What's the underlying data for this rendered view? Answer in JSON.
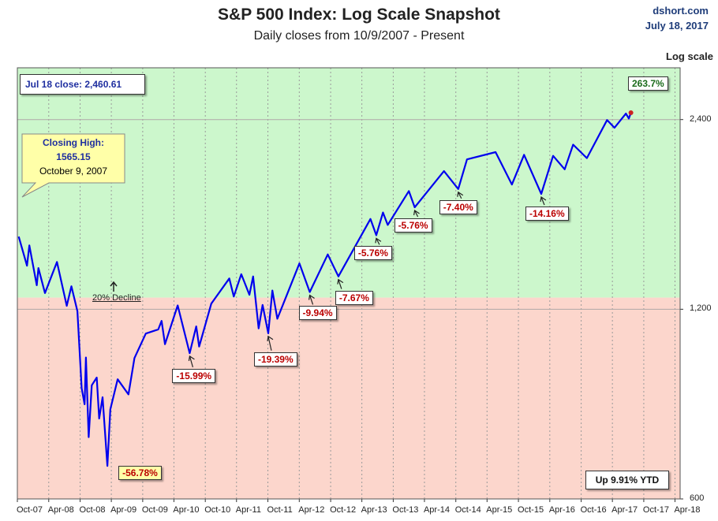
{
  "header": {
    "title": "S&P 500 Index: Log Scale Snapshot",
    "subtitle": "Daily closes from 10/9/2007 - Present",
    "source": "dshort.com",
    "date": "July 18, 2017",
    "scale_label": "Log scale"
  },
  "annotations": {
    "close_label": "Jul 18 close: 2,460.61",
    "gain_label": "263.7%",
    "ytd_label": "Up 9.91% YTD",
    "closing_high_title": "Closing High:",
    "closing_high_value": "1565.15",
    "closing_high_date": "October 9, 2007",
    "decline_label": "20% Decline"
  },
  "colors": {
    "line": "#0000ee",
    "upper_zone": "#ccf7cc",
    "lower_zone": "#fcd6cc",
    "drawdown_text": "#bb0000",
    "gain_text": "#1b6b1b"
  },
  "chart_data": {
    "type": "line",
    "title": "S&P 500 Index: Log Scale Snapshot",
    "subtitle": "Daily closes from 10/9/2007 - Present",
    "y_scale": "log",
    "ylim": [
      600,
      2900
    ],
    "xlim": [
      "2007-10-01",
      "2018-05-01"
    ],
    "y_ticks": [
      {
        "value": 600,
        "label": "600"
      },
      {
        "value": 1200,
        "label": "1,200"
      },
      {
        "value": 2400,
        "label": "2,400"
      }
    ],
    "x_ticks": [
      {
        "date": "2007-10-01",
        "label": "Oct-07"
      },
      {
        "date": "2008-04-01",
        "label": "Apr-08"
      },
      {
        "date": "2008-10-01",
        "label": "Oct-08"
      },
      {
        "date": "2009-04-01",
        "label": "Apr-09"
      },
      {
        "date": "2009-10-01",
        "label": "Oct-09"
      },
      {
        "date": "2010-04-01",
        "label": "Apr-10"
      },
      {
        "date": "2010-10-01",
        "label": "Oct-10"
      },
      {
        "date": "2011-04-01",
        "label": "Apr-11"
      },
      {
        "date": "2011-10-01",
        "label": "Oct-11"
      },
      {
        "date": "2012-04-01",
        "label": "Apr-12"
      },
      {
        "date": "2012-10-01",
        "label": "Oct-12"
      },
      {
        "date": "2013-04-01",
        "label": "Apr-13"
      },
      {
        "date": "2013-10-01",
        "label": "Oct-13"
      },
      {
        "date": "2014-04-01",
        "label": "Apr-14"
      },
      {
        "date": "2014-10-01",
        "label": "Oct-14"
      },
      {
        "date": "2015-04-01",
        "label": "Apr-15"
      },
      {
        "date": "2015-10-01",
        "label": "Oct-15"
      },
      {
        "date": "2016-04-01",
        "label": "Apr-16"
      },
      {
        "date": "2016-10-01",
        "label": "Oct-16"
      },
      {
        "date": "2017-04-01",
        "label": "Apr-17"
      },
      {
        "date": "2017-10-01",
        "label": "Oct-17"
      },
      {
        "date": "2018-04-01",
        "label": "Apr-18"
      }
    ],
    "zones": [
      {
        "from": 1252.12,
        "to": 2900,
        "color": "#ccf7cc"
      },
      {
        "from": 600,
        "to": 1252.12,
        "color": "#fcd6cc"
      }
    ],
    "series": [
      {
        "points": [
          [
            "2007-10-09",
            1565
          ],
          [
            "2007-11-26",
            1407
          ],
          [
            "2007-12-10",
            1515
          ],
          [
            "2008-01-22",
            1310
          ],
          [
            "2008-02-01",
            1395
          ],
          [
            "2008-03-10",
            1273
          ],
          [
            "2008-05-19",
            1426
          ],
          [
            "2008-07-15",
            1215
          ],
          [
            "2008-08-11",
            1305
          ],
          [
            "2008-09-15",
            1192
          ],
          [
            "2008-10-10",
            899
          ],
          [
            "2008-10-27",
            848
          ],
          [
            "2008-11-04",
            1006
          ],
          [
            "2008-11-20",
            752
          ],
          [
            "2008-12-08",
            909
          ],
          [
            "2009-01-06",
            935
          ],
          [
            "2009-01-20",
            805
          ],
          [
            "2009-02-09",
            870
          ],
          [
            "2009-03-09",
            677
          ],
          [
            "2009-03-26",
            832
          ],
          [
            "2009-05-08",
            929
          ],
          [
            "2009-07-10",
            879
          ],
          [
            "2009-08-14",
            1004
          ],
          [
            "2009-10-19",
            1098
          ],
          [
            "2009-12-31",
            1115
          ],
          [
            "2010-01-19",
            1150
          ],
          [
            "2010-02-08",
            1056
          ],
          [
            "2010-04-23",
            1217
          ],
          [
            "2010-07-02",
            1022
          ],
          [
            "2010-08-09",
            1127
          ],
          [
            "2010-08-26",
            1047
          ],
          [
            "2010-11-05",
            1225
          ],
          [
            "2011-02-18",
            1343
          ],
          [
            "2011-03-16",
            1257
          ],
          [
            "2011-04-29",
            1364
          ],
          [
            "2011-06-15",
            1265
          ],
          [
            "2011-07-07",
            1353
          ],
          [
            "2011-08-08",
            1119
          ],
          [
            "2011-08-31",
            1219
          ],
          [
            "2011-10-03",
            1099
          ],
          [
            "2011-10-27",
            1285
          ],
          [
            "2011-11-25",
            1159
          ],
          [
            "2012-04-02",
            1419
          ],
          [
            "2012-06-01",
            1278
          ],
          [
            "2012-09-14",
            1466
          ],
          [
            "2012-11-15",
            1353
          ],
          [
            "2013-05-21",
            1669
          ],
          [
            "2013-06-24",
            1573
          ],
          [
            "2013-08-02",
            1709
          ],
          [
            "2013-08-30",
            1633
          ],
          [
            "2013-12-31",
            1848
          ],
          [
            "2014-02-03",
            1742
          ],
          [
            "2014-07-24",
            1988
          ],
          [
            "2014-10-15",
            1862
          ],
          [
            "2014-12-05",
            2075
          ],
          [
            "2015-05-21",
            2131
          ],
          [
            "2015-08-24",
            1893
          ],
          [
            "2015-11-03",
            2110
          ],
          [
            "2016-02-11",
            1829
          ],
          [
            "2016-04-20",
            2102
          ],
          [
            "2016-06-27",
            2001
          ],
          [
            "2016-08-15",
            2190
          ],
          [
            "2016-11-03",
            2085
          ],
          [
            "2017-03-01",
            2396
          ],
          [
            "2017-04-13",
            2329
          ],
          [
            "2017-06-19",
            2453
          ],
          [
            "2017-07-06",
            2409
          ],
          [
            "2017-07-18",
            2460.61
          ]
        ]
      }
    ],
    "drawdowns": [
      {
        "label": "-56.78%",
        "date": "2009-03-09",
        "value": 676.53
      },
      {
        "label": "-15.99%",
        "date": "2010-07-02",
        "value": 1022.58
      },
      {
        "label": "-19.39%",
        "date": "2011-10-03",
        "value": 1099.23
      },
      {
        "label": "-9.94%",
        "date": "2012-06-01",
        "value": 1278.04
      },
      {
        "label": "-7.67%",
        "date": "2012-11-15",
        "value": 1353.33
      },
      {
        "label": "-5.76%",
        "date": "2013-06-24",
        "value": 1573.09
      },
      {
        "label": "-5.76%",
        "date": "2014-02-03",
        "value": 1741.89
      },
      {
        "label": "-7.40%",
        "date": "2014-10-15",
        "value": 1862.49
      },
      {
        "label": "-14.16%",
        "date": "2016-02-11",
        "value": 1829.08
      }
    ]
  }
}
